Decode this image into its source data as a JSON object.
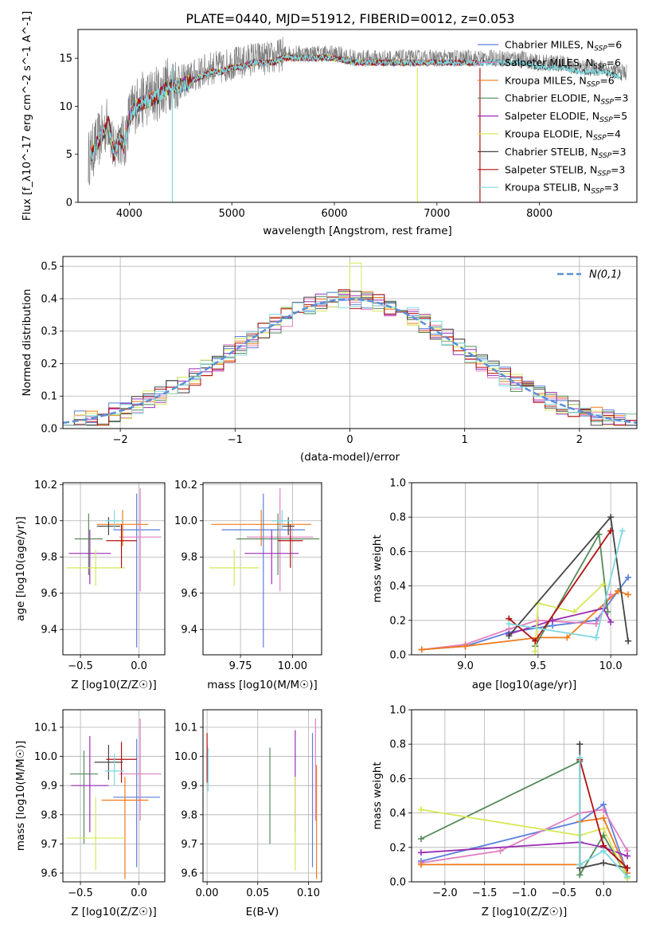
{
  "figure": {
    "title": "PLATE=0440, MJD=51912, FIBERID=0012, z=0.053"
  },
  "colors": {
    "Chabrier MILES": "#5b7fdb",
    "Salpeter MILES": "#e07fc0",
    "Kroupa MILES": "#f07a1a",
    "Chabrier ELODIE": "#548a5a",
    "Salpeter ELODIE": "#9a2fb4",
    "Kroupa ELODIE": "#d8e85a",
    "Chabrier STELIB": "#444444",
    "Salpeter STELIB": "#b01010",
    "Kroupa STELIB": "#7fd8df",
    "data": "#808080",
    "gaussian": "#5b8fd8"
  },
  "chart_data": [
    {
      "id": "spectrum",
      "type": "line",
      "xlabel": "wavelength [Angstrom, rest frame]",
      "ylabel": "Flux [f_λ10^-17 erg cm^-2 s^-1 A^-1]",
      "xlim": [
        3500,
        8950
      ],
      "ylim": [
        0,
        18
      ],
      "xticks": [
        4000,
        5000,
        6000,
        7000,
        8000
      ],
      "yticks": [
        0,
        5,
        10,
        15
      ],
      "grid": false,
      "legend": "upper-right",
      "legend_entries": [
        {
          "model": "Chabrier MILES",
          "nssp": "6"
        },
        {
          "model": "Salpeter MILES",
          "nssp": "6"
        },
        {
          "model": "Kroupa MILES",
          "nssp": "6"
        },
        {
          "model": "Chabrier ELODIE",
          "nssp": "3"
        },
        {
          "model": "Salpeter ELODIE",
          "nssp": "5"
        },
        {
          "model": "Kroupa ELODIE",
          "nssp": "4"
        },
        {
          "model": "Chabrier STELIB",
          "nssp": "3"
        },
        {
          "model": "Salpeter STELIB",
          "nssp": "3"
        },
        {
          "model": "Kroupa STELIB",
          "nssp": "3"
        }
      ],
      "data_curve": {
        "x": [
          3600,
          3650,
          3700,
          3750,
          3800,
          3850,
          3900,
          3950,
          4000,
          4050,
          4100,
          4200,
          4300,
          4400,
          4500,
          4600,
          4700,
          4800,
          4900,
          5000,
          5100,
          5200,
          5300,
          5400,
          5500,
          5600,
          5700,
          5800,
          5900,
          6000,
          6200,
          6400,
          6600,
          6800,
          7000,
          7200,
          7400,
          7600,
          7800,
          8000,
          8200,
          8400,
          8600,
          8800
        ],
        "y": [
          4.5,
          5.5,
          6.5,
          7.5,
          8.5,
          5.0,
          7.0,
          6.0,
          9.0,
          10.0,
          10.5,
          11.0,
          11.5,
          12.5,
          12.5,
          13.0,
          13.5,
          14.0,
          14.0,
          14.5,
          14.5,
          15.0,
          15.0,
          15.0,
          15.5,
          15.5,
          15.5,
          15.5,
          15.5,
          15.5,
          15.0,
          15.0,
          15.0,
          15.0,
          15.0,
          15.0,
          15.0,
          15.0,
          15.0,
          14.5,
          14.5,
          14.0,
          14.0,
          13.5
        ]
      }
    },
    {
      "id": "residuals",
      "type": "histogram",
      "xlabel": "(data-model)/error",
      "ylabel": "Normed distribution",
      "xlim": [
        -2.5,
        2.5
      ],
      "ylim": [
        0,
        0.53
      ],
      "xticks": [
        -2,
        -1,
        0,
        1,
        2
      ],
      "yticks": [
        0.0,
        0.1,
        0.2,
        0.3,
        0.4,
        0.5
      ],
      "grid": true,
      "legend": "upper-right",
      "legend_label": "N(0,1)",
      "bin_width": 0.1,
      "bins_start": -2.5,
      "max_value": 0.51
    },
    {
      "id": "age-vs-Z",
      "type": "errorbar",
      "xlabel": "Z [log10(Z/Z☉)]",
      "ylabel": "age [log10(age/yr)]",
      "xlim": [
        -0.65,
        0.22
      ],
      "ylim": [
        9.26,
        10.21
      ],
      "xticks": [
        -0.5,
        0.0
      ],
      "yticks": [
        9.4,
        9.6,
        9.8,
        10.0,
        10.2
      ],
      "grid": true,
      "points": [
        {
          "model": "Chabrier MILES",
          "x": -0.02,
          "xerr": 0.2,
          "y": 9.95,
          "yerr": [
            0.65,
            0.2
          ]
        },
        {
          "model": "Salpeter MILES",
          "x": 0.01,
          "xerr": 0.18,
          "y": 9.91,
          "yerr": [
            0.3,
            0.27
          ]
        },
        {
          "model": "Kroupa MILES",
          "x": -0.14,
          "xerr": 0.22,
          "y": 9.98,
          "yerr": [
            0.12,
            0.08
          ]
        },
        {
          "model": "Chabrier ELODIE",
          "x": -0.43,
          "xerr": 0.12,
          "y": 9.9,
          "yerr": [
            0.2,
            0.14
          ]
        },
        {
          "model": "Salpeter ELODIE",
          "x": -0.42,
          "xerr": 0.18,
          "y": 9.82,
          "yerr": [
            0.17,
            0.13
          ]
        },
        {
          "model": "Kroupa ELODIE",
          "x": -0.37,
          "xerr": 0.25,
          "y": 9.74,
          "yerr": [
            0.1,
            0.1
          ]
        },
        {
          "model": "Chabrier STELIB",
          "x": -0.26,
          "xerr": 0.1,
          "y": 9.97,
          "yerr": [
            0.05,
            0.05
          ]
        },
        {
          "model": "Salpeter STELIB",
          "x": -0.15,
          "xerr": 0.13,
          "y": 9.89,
          "yerr": [
            0.15,
            0.09
          ]
        },
        {
          "model": "Kroupa STELIB",
          "x": -0.21,
          "xerr": 0.08,
          "y": 10.0,
          "yerr": [
            0.05,
            0.06
          ]
        }
      ]
    },
    {
      "id": "age-vs-mass",
      "type": "errorbar",
      "xlabel": "mass [log10(M/M☉)]",
      "ylabel": "",
      "xlim": [
        9.57,
        10.14
      ],
      "ylim": [
        9.26,
        10.21
      ],
      "xticks": [
        9.75,
        10.0
      ],
      "yticks": [
        9.4,
        9.6,
        9.8,
        10.0,
        10.2
      ],
      "grid": true,
      "points": [
        {
          "model": "Chabrier MILES",
          "x": 9.86,
          "xerr": 0.2,
          "y": 9.95,
          "yerr": [
            0.65,
            0.2
          ]
        },
        {
          "model": "Salpeter MILES",
          "x": 9.94,
          "xerr": 0.16,
          "y": 9.91,
          "yerr": [
            0.3,
            0.27
          ]
        },
        {
          "model": "Kroupa MILES",
          "x": 9.85,
          "xerr": 0.24,
          "y": 9.98,
          "yerr": [
            0.12,
            0.08
          ]
        },
        {
          "model": "Chabrier ELODIE",
          "x": 9.93,
          "xerr": 0.2,
          "y": 9.9,
          "yerr": [
            0.2,
            0.14
          ]
        },
        {
          "model": "Salpeter ELODIE",
          "x": 9.9,
          "xerr": 0.13,
          "y": 9.82,
          "yerr": [
            0.17,
            0.13
          ]
        },
        {
          "model": "Kroupa ELODIE",
          "x": 9.72,
          "xerr": 0.12,
          "y": 9.74,
          "yerr": [
            0.1,
            0.1
          ]
        },
        {
          "model": "Chabrier STELIB",
          "x": 9.98,
          "xerr": 0.03,
          "y": 9.97,
          "yerr": [
            0.05,
            0.05
          ]
        },
        {
          "model": "Salpeter STELIB",
          "x": 9.99,
          "xerr": 0.06,
          "y": 9.89,
          "yerr": [
            0.15,
            0.09
          ]
        },
        {
          "model": "Kroupa STELIB",
          "x": 9.95,
          "xerr": 0.05,
          "y": 10.0,
          "yerr": [
            0.05,
            0.06
          ]
        }
      ]
    },
    {
      "id": "massweight-vs-age",
      "type": "line",
      "xlabel": "age [log10(age/yr)]",
      "ylabel": "mass weight",
      "xlim": [
        8.63,
        10.18
      ],
      "ylim": [
        0,
        1.0
      ],
      "xticks": [
        9.0,
        9.5,
        10.0
      ],
      "yticks": [
        0.0,
        0.2,
        0.4,
        0.6,
        0.8,
        1.0
      ],
      "grid": true,
      "series": [
        {
          "model": "Chabrier MILES",
          "x": [
            8.7,
            9.0,
            9.3,
            9.6,
            9.9,
            10.05,
            10.12
          ],
          "y": [
            0.03,
            0.05,
            0.13,
            0.17,
            0.2,
            0.37,
            0.45
          ]
        },
        {
          "model": "Salpeter MILES",
          "x": [
            8.7,
            9.0,
            9.3,
            9.5,
            9.9,
            10.0
          ],
          "y": [
            0.03,
            0.06,
            0.15,
            0.2,
            0.18,
            0.35
          ]
        },
        {
          "model": "Kroupa MILES",
          "x": [
            8.7,
            9.0,
            9.5,
            9.7,
            10.05,
            10.12
          ],
          "y": [
            0.03,
            0.05,
            0.1,
            0.1,
            0.37,
            0.35
          ]
        },
        {
          "model": "Chabrier ELODIE",
          "x": [
            9.48,
            9.92,
            9.98
          ],
          "y": [
            0.05,
            0.7,
            0.25
          ]
        },
        {
          "model": "Salpeter ELODIE",
          "x": [
            9.3,
            9.6,
            9.95,
            10.0
          ],
          "y": [
            0.12,
            0.2,
            0.27,
            0.19
          ]
        },
        {
          "model": "Kroupa ELODIE",
          "x": [
            9.48,
            9.5,
            9.75,
            9.95
          ],
          "y": [
            0.02,
            0.3,
            0.25,
            0.41
          ]
        },
        {
          "model": "Chabrier STELIB",
          "x": [
            9.3,
            10.0,
            10.12
          ],
          "y": [
            0.11,
            0.8,
            0.08
          ]
        },
        {
          "model": "Salpeter STELIB",
          "x": [
            9.3,
            9.48,
            10.0
          ],
          "y": [
            0.21,
            0.08,
            0.72
          ]
        },
        {
          "model": "Kroupa STELIB",
          "x": [
            9.3,
            9.9,
            10.08
          ],
          "y": [
            0.18,
            0.1,
            0.72
          ]
        }
      ]
    },
    {
      "id": "mass-vs-Z",
      "type": "errorbar",
      "xlabel": "Z [log10(Z/Z☉)]",
      "ylabel": "mass [log10(M/M☉)]",
      "xlim": [
        -0.65,
        0.22
      ],
      "ylim": [
        9.57,
        10.16
      ],
      "xticks": [
        -0.5,
        0.0
      ],
      "yticks": [
        9.6,
        9.7,
        9.8,
        9.9,
        10.0,
        10.1
      ],
      "grid": true,
      "points": [
        {
          "model": "Chabrier MILES",
          "x": -0.02,
          "xerr": 0.2,
          "y": 9.86,
          "yerr": [
            0.24,
            0.2
          ]
        },
        {
          "model": "Salpeter MILES",
          "x": 0.01,
          "xerr": 0.18,
          "y": 9.94,
          "yerr": [
            0.16,
            0.19
          ]
        },
        {
          "model": "Kroupa MILES",
          "x": -0.12,
          "xerr": 0.2,
          "y": 9.85,
          "yerr": [
            0.27,
            0.08
          ]
        },
        {
          "model": "Chabrier ELODIE",
          "x": -0.47,
          "xerr": 0.12,
          "y": 9.94,
          "yerr": [
            0.24,
            0.08
          ]
        },
        {
          "model": "Salpeter ELODIE",
          "x": -0.42,
          "xerr": 0.16,
          "y": 9.9,
          "yerr": [
            0.16,
            0.17
          ]
        },
        {
          "model": "Kroupa ELODIE",
          "x": -0.37,
          "xerr": 0.25,
          "y": 9.72,
          "yerr": [
            0.11,
            0.14
          ]
        },
        {
          "model": "Chabrier STELIB",
          "x": -0.26,
          "xerr": 0.12,
          "y": 9.98,
          "yerr": [
            0.06,
            0.06
          ]
        },
        {
          "model": "Salpeter STELIB",
          "x": -0.15,
          "xerr": 0.13,
          "y": 9.99,
          "yerr": [
            0.08,
            0.06
          ]
        },
        {
          "model": "Kroupa STELIB",
          "x": -0.21,
          "xerr": 0.08,
          "y": 9.95,
          "yerr": [
            0.05,
            0.06
          ]
        }
      ]
    },
    {
      "id": "mass-vs-EBV",
      "type": "errorbar",
      "xlabel": "E(B-V)",
      "ylabel": "",
      "xlim": [
        -0.004,
        0.113
      ],
      "ylim": [
        9.57,
        10.16
      ],
      "xticks": [
        0.0,
        0.05,
        0.1
      ],
      "yticks": [
        9.6,
        9.7,
        9.8,
        9.9,
        10.0,
        10.1
      ],
      "grid": true,
      "points": [
        {
          "model": "Chabrier MILES",
          "x": 0.104,
          "y": 9.86,
          "yerr": [
            0.24,
            0.22
          ]
        },
        {
          "model": "Salpeter MILES",
          "x": 0.107,
          "y": 9.94,
          "yerr": [
            0.16,
            0.19
          ]
        },
        {
          "model": "Kroupa MILES",
          "x": 0.108,
          "y": 9.85,
          "yerr": [
            0.27,
            0.12
          ]
        },
        {
          "model": "Chabrier ELODIE",
          "x": 0.062,
          "y": 9.94,
          "yerr": [
            0.24,
            0.09
          ]
        },
        {
          "model": "Salpeter ELODIE",
          "x": 0.087,
          "y": 9.9,
          "yerr": [
            0.16,
            0.19
          ]
        },
        {
          "model": "Kroupa ELODIE",
          "x": 0.087,
          "y": 9.72,
          "yerr": [
            0.11,
            0.21
          ]
        },
        {
          "model": "Chabrier STELIB",
          "x": 0.0,
          "y": 9.98,
          "yerr": [
            0.06,
            0.06
          ]
        },
        {
          "model": "Salpeter STELIB",
          "x": 0.0,
          "y": 9.99,
          "yerr": [
            0.08,
            0.09
          ]
        },
        {
          "model": "Kroupa STELIB",
          "x": 0.001,
          "y": 9.95,
          "yerr": [
            0.07,
            0.08
          ]
        }
      ]
    },
    {
      "id": "massweight-vs-Z",
      "type": "line",
      "xlabel": "Z [log10(Z/Z☉)]",
      "ylabel": "mass weight",
      "xlim": [
        -2.42,
        0.42
      ],
      "ylim": [
        0,
        1.0
      ],
      "xticks": [
        -2.0,
        -1.5,
        -1.0,
        -0.5,
        0.0
      ],
      "yticks": [
        0.0,
        0.2,
        0.4,
        0.6,
        0.8,
        1.0
      ],
      "grid": true,
      "series": [
        {
          "model": "Chabrier MILES",
          "x": [
            -2.3,
            -0.3,
            0.0,
            0.3
          ],
          "y": [
            0.12,
            0.35,
            0.45,
            0.05
          ]
        },
        {
          "model": "Salpeter MILES",
          "x": [
            -2.3,
            -1.3,
            -0.3,
            0.0,
            0.3
          ],
          "y": [
            0.11,
            0.18,
            0.4,
            0.42,
            0.18
          ]
        },
        {
          "model": "Kroupa MILES",
          "x": [
            -2.3,
            -0.3,
            -0.3,
            0.0,
            0.3
          ],
          "y": [
            0.1,
            0.1,
            0.35,
            0.37,
            0.05
          ]
        },
        {
          "model": "Chabrier ELODIE",
          "x": [
            -2.3,
            -0.3,
            -0.3,
            0.0,
            0.3
          ],
          "y": [
            0.25,
            0.7,
            0.04,
            0.27,
            0.03
          ]
        },
        {
          "model": "Salpeter ELODIE",
          "x": [
            -2.3,
            -0.3,
            0.0,
            0.3
          ],
          "y": [
            0.17,
            0.23,
            0.2,
            0.15
          ]
        },
        {
          "model": "Kroupa ELODIE",
          "x": [
            -2.3,
            -0.3,
            0.0,
            0.3
          ],
          "y": [
            0.42,
            0.27,
            0.31,
            0.02
          ]
        },
        {
          "model": "Chabrier STELIB",
          "x": [
            -0.3,
            -0.3,
            0.0,
            0.3
          ],
          "y": [
            0.8,
            0.08,
            0.11,
            0.08
          ]
        },
        {
          "model": "Salpeter STELIB",
          "x": [
            -0.3,
            0.0,
            0.3
          ],
          "y": [
            0.71,
            0.21,
            0.08
          ]
        },
        {
          "model": "Kroupa STELIB",
          "x": [
            -0.3,
            -0.3,
            0.0,
            0.3
          ],
          "y": [
            0.72,
            0.1,
            0.18,
            0.03
          ]
        }
      ]
    }
  ]
}
